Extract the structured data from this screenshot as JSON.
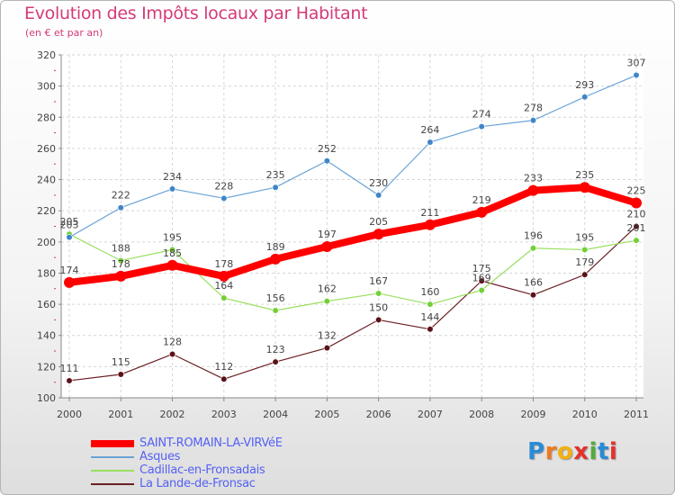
{
  "header": {
    "title": "Evolution des Impôts locaux par Habitant",
    "subtitle": "(en € et par an)"
  },
  "logo": {
    "text": "Proxiti",
    "letters": [
      "P",
      "r",
      "o",
      "x",
      "i",
      "t",
      "i"
    ]
  },
  "chart_data": {
    "type": "line",
    "title": "Evolution des Impôts locaux par Habitant",
    "subtitle": "(en € et par an)",
    "xlabel": "",
    "ylabel": "",
    "x": [
      "2000",
      "2001",
      "2002",
      "2003",
      "2004",
      "2005",
      "2006",
      "2007",
      "2008",
      "2009",
      "2010",
      "2011"
    ],
    "ylim": [
      100,
      320
    ],
    "yticks": [
      100,
      120,
      140,
      160,
      180,
      200,
      220,
      240,
      260,
      280,
      300,
      320
    ],
    "grid": true,
    "legend_position": "bottom-left",
    "series": [
      {
        "name": "SAINT-ROMAIN-LA-VIRVéE",
        "color": "#ff0000",
        "values": [
          174,
          178,
          185,
          178,
          189,
          197,
          205,
          211,
          219,
          233,
          235,
          225
        ]
      },
      {
        "name": "Asques",
        "color": "#6aa3d6",
        "values": [
          203,
          222,
          234,
          228,
          235,
          252,
          230,
          264,
          274,
          278,
          293,
          307
        ]
      },
      {
        "name": "Cadillac-en-Fronsadais",
        "color": "#98e060",
        "values": [
          205,
          188,
          195,
          164,
          156,
          162,
          167,
          160,
          169,
          196,
          195,
          201
        ]
      },
      {
        "name": "La Lande-de-Fronsac",
        "color": "#6b1f24",
        "values": [
          111,
          115,
          128,
          112,
          123,
          132,
          150,
          144,
          175,
          166,
          179,
          210
        ]
      }
    ]
  }
}
